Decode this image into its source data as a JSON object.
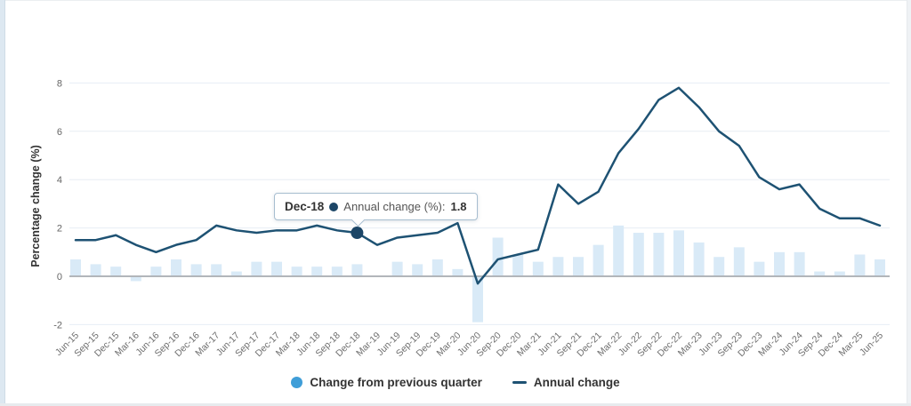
{
  "chart_data": {
    "type": "bar+line",
    "categories": [
      "Jun-15",
      "Sep-15",
      "Dec-15",
      "Mar-16",
      "Jun-16",
      "Sep-16",
      "Dec-16",
      "Mar-17",
      "Jun-17",
      "Sep-17",
      "Dec-17",
      "Mar-18",
      "Jun-18",
      "Sep-18",
      "Dec-18",
      "Mar-19",
      "Jun-19",
      "Sep-19",
      "Dec-19",
      "Mar-20",
      "Jun-20",
      "Sep-20",
      "Dec-20",
      "Mar-21",
      "Jun-21",
      "Sep-21",
      "Dec-21",
      "Mar-22",
      "Jun-22",
      "Sep-22",
      "Dec-22",
      "Mar-23",
      "Jun-23",
      "Sep-23",
      "Dec-23",
      "Mar-24",
      "Jun-24",
      "Sep-24",
      "Dec-24",
      "Mar-25",
      "Jun-25"
    ],
    "series": [
      {
        "name": "Change from previous quarter",
        "type": "bar",
        "color": "#d9eaf7",
        "values": [
          0.7,
          0.5,
          0.4,
          -0.2,
          0.4,
          0.7,
          0.5,
          0.5,
          0.2,
          0.6,
          0.6,
          0.4,
          0.4,
          0.4,
          0.5,
          0.0,
          0.6,
          0.5,
          0.7,
          0.3,
          -1.9,
          1.6,
          0.9,
          0.6,
          0.8,
          0.8,
          1.3,
          2.1,
          1.8,
          1.8,
          1.9,
          1.4,
          0.8,
          1.2,
          0.6,
          1.0,
          1.0,
          0.2,
          0.2,
          0.9,
          0.7
        ]
      },
      {
        "name": "Annual change",
        "type": "line",
        "color": "#1e5273",
        "values": [
          1.5,
          1.5,
          1.7,
          1.3,
          1.0,
          1.3,
          1.5,
          2.1,
          1.9,
          1.8,
          1.9,
          1.9,
          2.1,
          1.9,
          1.8,
          1.3,
          1.6,
          1.7,
          1.8,
          2.2,
          -0.3,
          0.7,
          0.9,
          1.1,
          3.8,
          3.0,
          3.5,
          5.1,
          6.1,
          7.3,
          7.8,
          7.0,
          6.0,
          5.4,
          4.1,
          3.6,
          3.8,
          2.8,
          2.4,
          2.4,
          2.1
        ]
      }
    ],
    "ylabel": "Percentage change (%)",
    "y_ticks": [
      -2,
      0,
      2,
      4,
      6,
      8
    ],
    "ylim": [
      -2.6,
      8.6
    ],
    "grid": "horizontal",
    "legend_position": "bottom"
  },
  "tooltip": {
    "category": "Dec-18",
    "series_label": "Annual change (%):",
    "value": "1.8",
    "marker_color": "#1c4667"
  },
  "legend": {
    "items": [
      {
        "label": "Change from previous quarter",
        "marker": "circle",
        "color": "#3f9ed8"
      },
      {
        "label": "Annual change",
        "marker": "line",
        "color": "#1e5273"
      }
    ]
  },
  "colors": {
    "grid_line": "#e7eef4",
    "zero_line": "#b2b6ba",
    "tick_text": "#666666",
    "hover_point": "#1c4667"
  }
}
